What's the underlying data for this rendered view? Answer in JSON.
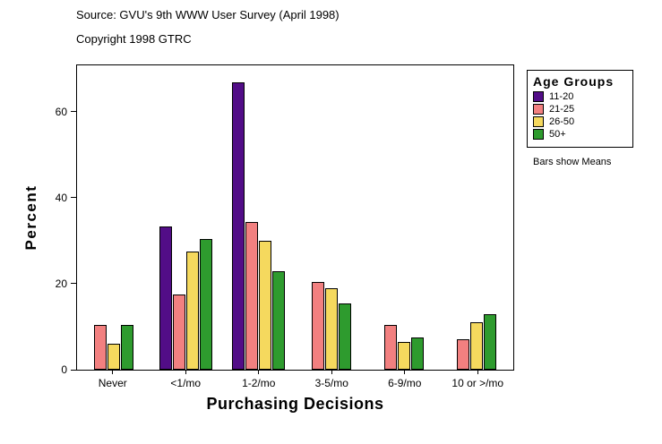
{
  "header": {
    "source_line": "Source: GVU's 9th WWW User Survey (April 1998)",
    "copyright_line": "Copyright 1998 GTRC"
  },
  "chart_data": {
    "type": "bar",
    "title": "",
    "xlabel": "Purchasing Decisions",
    "ylabel": "Percent",
    "ylim": [
      0,
      71
    ],
    "yticks": [
      0,
      20,
      40,
      60
    ],
    "grid": false,
    "categories": [
      "Never",
      "<1/mo",
      "1-2/mo",
      "3-5/mo",
      "6-9/mo",
      "10 or >/mo"
    ],
    "series": [
      {
        "name": "11-20",
        "color": "#520d87",
        "values": [
          null,
          33.5,
          67,
          null,
          null,
          null
        ]
      },
      {
        "name": "21-25",
        "color": "#f28080",
        "values": [
          10.5,
          17.5,
          34.5,
          20.5,
          10.5,
          7
        ]
      },
      {
        "name": "26-50",
        "color": "#f5d95e",
        "values": [
          6,
          27.5,
          30,
          19,
          6.5,
          11
        ]
      },
      {
        "name": "50+",
        "color": "#2e9b2e",
        "values": [
          10.5,
          30.5,
          23,
          15.5,
          7.5,
          13
        ]
      }
    ],
    "legend": {
      "title": "Age Groups",
      "note": "Bars show Means",
      "position": "right"
    }
  }
}
